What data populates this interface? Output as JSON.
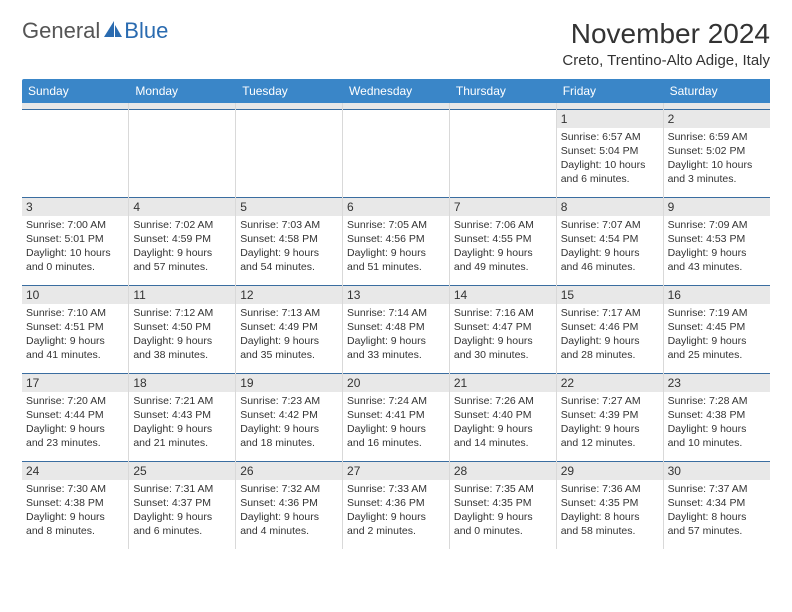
{
  "brand": {
    "general": "General",
    "blue": "Blue"
  },
  "title": "November 2024",
  "location": "Creto, Trentino-Alto Adige, Italy",
  "colors": {
    "header_bg": "#3a86c8",
    "header_text": "#ffffff",
    "row_divider": "#3a6da0",
    "cell_divider": "#d9d9d9",
    "daynum_bg": "#e8e8e8",
    "logo_blue": "#2a6bb0",
    "logo_gray": "#555555"
  },
  "day_names": [
    "Sunday",
    "Monday",
    "Tuesday",
    "Wednesday",
    "Thursday",
    "Friday",
    "Saturday"
  ],
  "weeks": [
    [
      null,
      null,
      null,
      null,
      null,
      {
        "n": "1",
        "sr": "6:57 AM",
        "ss": "5:04 PM",
        "dl": "10 hours and 6 minutes."
      },
      {
        "n": "2",
        "sr": "6:59 AM",
        "ss": "5:02 PM",
        "dl": "10 hours and 3 minutes."
      }
    ],
    [
      {
        "n": "3",
        "sr": "7:00 AM",
        "ss": "5:01 PM",
        "dl": "10 hours and 0 minutes."
      },
      {
        "n": "4",
        "sr": "7:02 AM",
        "ss": "4:59 PM",
        "dl": "9 hours and 57 minutes."
      },
      {
        "n": "5",
        "sr": "7:03 AM",
        "ss": "4:58 PM",
        "dl": "9 hours and 54 minutes."
      },
      {
        "n": "6",
        "sr": "7:05 AM",
        "ss": "4:56 PM",
        "dl": "9 hours and 51 minutes."
      },
      {
        "n": "7",
        "sr": "7:06 AM",
        "ss": "4:55 PM",
        "dl": "9 hours and 49 minutes."
      },
      {
        "n": "8",
        "sr": "7:07 AM",
        "ss": "4:54 PM",
        "dl": "9 hours and 46 minutes."
      },
      {
        "n": "9",
        "sr": "7:09 AM",
        "ss": "4:53 PM",
        "dl": "9 hours and 43 minutes."
      }
    ],
    [
      {
        "n": "10",
        "sr": "7:10 AM",
        "ss": "4:51 PM",
        "dl": "9 hours and 41 minutes."
      },
      {
        "n": "11",
        "sr": "7:12 AM",
        "ss": "4:50 PM",
        "dl": "9 hours and 38 minutes."
      },
      {
        "n": "12",
        "sr": "7:13 AM",
        "ss": "4:49 PM",
        "dl": "9 hours and 35 minutes."
      },
      {
        "n": "13",
        "sr": "7:14 AM",
        "ss": "4:48 PM",
        "dl": "9 hours and 33 minutes."
      },
      {
        "n": "14",
        "sr": "7:16 AM",
        "ss": "4:47 PM",
        "dl": "9 hours and 30 minutes."
      },
      {
        "n": "15",
        "sr": "7:17 AM",
        "ss": "4:46 PM",
        "dl": "9 hours and 28 minutes."
      },
      {
        "n": "16",
        "sr": "7:19 AM",
        "ss": "4:45 PM",
        "dl": "9 hours and 25 minutes."
      }
    ],
    [
      {
        "n": "17",
        "sr": "7:20 AM",
        "ss": "4:44 PM",
        "dl": "9 hours and 23 minutes."
      },
      {
        "n": "18",
        "sr": "7:21 AM",
        "ss": "4:43 PM",
        "dl": "9 hours and 21 minutes."
      },
      {
        "n": "19",
        "sr": "7:23 AM",
        "ss": "4:42 PM",
        "dl": "9 hours and 18 minutes."
      },
      {
        "n": "20",
        "sr": "7:24 AM",
        "ss": "4:41 PM",
        "dl": "9 hours and 16 minutes."
      },
      {
        "n": "21",
        "sr": "7:26 AM",
        "ss": "4:40 PM",
        "dl": "9 hours and 14 minutes."
      },
      {
        "n": "22",
        "sr": "7:27 AM",
        "ss": "4:39 PM",
        "dl": "9 hours and 12 minutes."
      },
      {
        "n": "23",
        "sr": "7:28 AM",
        "ss": "4:38 PM",
        "dl": "9 hours and 10 minutes."
      }
    ],
    [
      {
        "n": "24",
        "sr": "7:30 AM",
        "ss": "4:38 PM",
        "dl": "9 hours and 8 minutes."
      },
      {
        "n": "25",
        "sr": "7:31 AM",
        "ss": "4:37 PM",
        "dl": "9 hours and 6 minutes."
      },
      {
        "n": "26",
        "sr": "7:32 AM",
        "ss": "4:36 PM",
        "dl": "9 hours and 4 minutes."
      },
      {
        "n": "27",
        "sr": "7:33 AM",
        "ss": "4:36 PM",
        "dl": "9 hours and 2 minutes."
      },
      {
        "n": "28",
        "sr": "7:35 AM",
        "ss": "4:35 PM",
        "dl": "9 hours and 0 minutes."
      },
      {
        "n": "29",
        "sr": "7:36 AM",
        "ss": "4:35 PM",
        "dl": "8 hours and 58 minutes."
      },
      {
        "n": "30",
        "sr": "7:37 AM",
        "ss": "4:34 PM",
        "dl": "8 hours and 57 minutes."
      }
    ]
  ],
  "labels": {
    "sunrise": "Sunrise:",
    "sunset": "Sunset:",
    "daylight": "Daylight:"
  }
}
